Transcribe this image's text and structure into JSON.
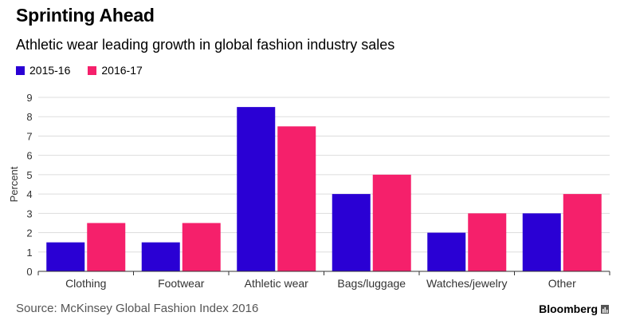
{
  "title": "Sprinting Ahead",
  "subtitle": "Athletic wear leading growth in global fashion industry sales",
  "source": "Source: McKinsey Global Fashion Index 2016",
  "brand": "Bloomberg",
  "colors": {
    "series1": "#2a00d4",
    "series2": "#f5206b",
    "grid": "#dddddd",
    "axis": "#333333"
  },
  "chart_data": {
    "type": "bar",
    "title": "Sprinting Ahead",
    "subtitle": "Athletic wear leading growth in global fashion industry sales",
    "xlabel": "",
    "ylabel": "Percent",
    "ylim": [
      0,
      9
    ],
    "yticks": [
      0,
      1,
      2,
      3,
      4,
      5,
      6,
      7,
      8,
      9
    ],
    "grid": true,
    "legend": "top-left",
    "categories": [
      "Clothing",
      "Footwear",
      "Athletic wear",
      "Bags/luggage",
      "Watches/jewelry",
      "Other"
    ],
    "series": [
      {
        "name": "2015-16",
        "color": "#2a00d4",
        "values": [
          1.5,
          1.5,
          8.5,
          4,
          2,
          3
        ]
      },
      {
        "name": "2016-17",
        "color": "#f5206b",
        "values": [
          2.5,
          2.5,
          7.5,
          5,
          3,
          4
        ]
      }
    ]
  }
}
